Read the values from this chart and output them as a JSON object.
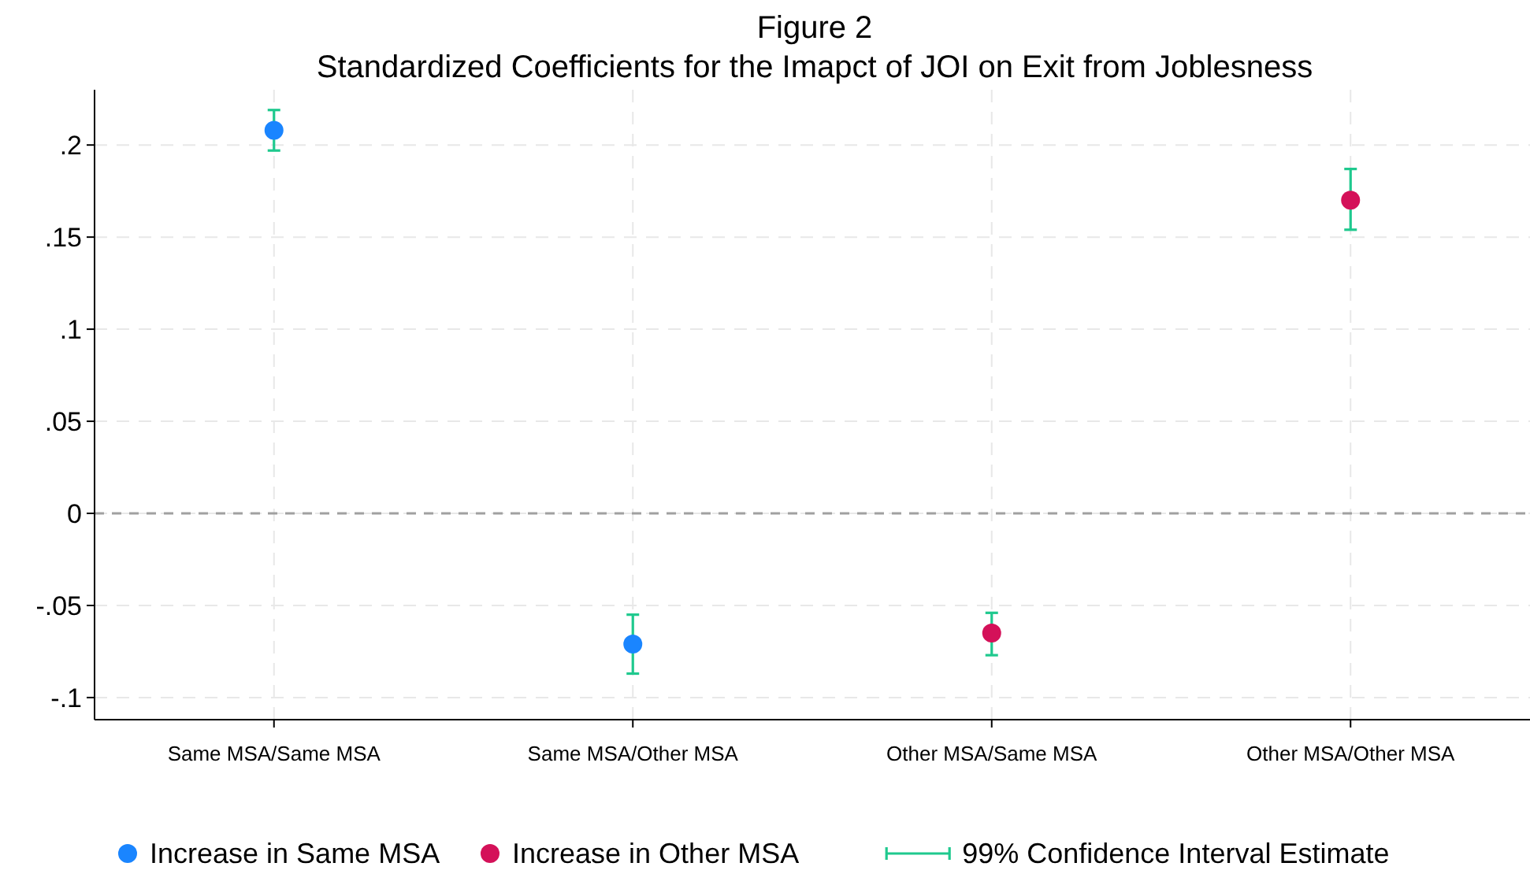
{
  "chart_data": {
    "type": "scatter",
    "title": "Figure 2",
    "subtitle": "Standardized Coefficients for the Imapct of JOI on Exit from Joblesness",
    "categories": [
      "Same MSA/Same MSA",
      "Same MSA/Other MSA",
      "Other MSA/Same MSA",
      "Other MSA/Other MSA"
    ],
    "series": [
      {
        "name": "Increase in Same MSA",
        "color": "#1a85ff",
        "values": [
          0.208,
          -0.071,
          null,
          null
        ],
        "errors": [
          [
            0.197,
            0.219
          ],
          [
            -0.087,
            -0.055
          ],
          null,
          null
        ]
      },
      {
        "name": "Increase in Other MSA",
        "color": "#d41159",
        "values": [
          null,
          null,
          -0.065,
          0.17
        ],
        "errors": [
          null,
          null,
          [
            -0.077,
            -0.054
          ],
          [
            0.154,
            0.187
          ]
        ]
      }
    ],
    "annotations": [
      "99% Confidence Interval Estimate"
    ],
    "ylim": [
      -0.112,
      0.23
    ],
    "yticks": [
      {
        "value": -0.1,
        "label": "-.1"
      },
      {
        "value": -0.05,
        "label": "-.05"
      },
      0,
      {
        "value": 0.05,
        "label": ".05"
      },
      {
        "value": 0.1,
        "label": ".1"
      },
      {
        "value": 0.15,
        "label": ".15"
      },
      {
        "value": 0.2,
        "label": ".2"
      }
    ],
    "ref_lines": [
      {
        "axis": "y",
        "value": 0,
        "color": "#a0a0a0",
        "line_style": "dashed"
      }
    ],
    "grid": true,
    "legend": "bottom",
    "marker": "circle"
  }
}
